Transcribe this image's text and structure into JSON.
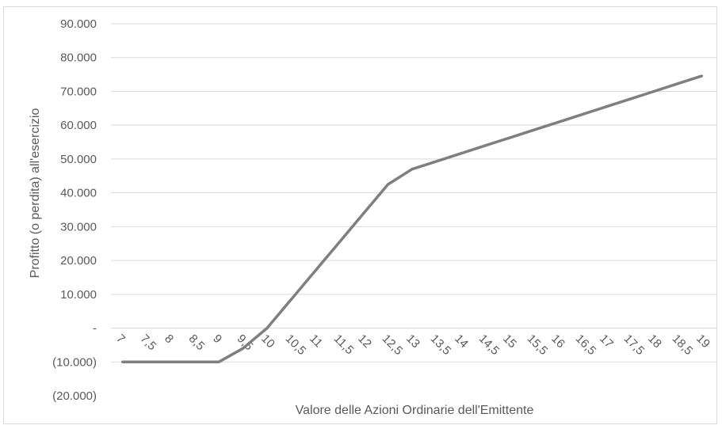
{
  "chart_data": {
    "type": "line",
    "title": "",
    "xlabel": "Valore delle Azioni Ordinarie dell'Emittente",
    "ylabel": "Profitto (o perdita) all'esercizio",
    "categories": [
      "7",
      "7,5",
      "8",
      "8,5",
      "9",
      "9,5",
      "10",
      "10,5",
      "11",
      "11,5",
      "12",
      "12,5",
      "13",
      "13,5",
      "14",
      "14,5",
      "15",
      "15,5",
      "16",
      "16,5",
      "17",
      "17,5",
      "18",
      "18,5",
      "19"
    ],
    "series": [
      {
        "values": [
          -10000,
          -10000,
          -10000,
          -10000,
          -10000,
          -6000,
          0,
          8500,
          17000,
          25500,
          34000,
          42500,
          47000,
          49300,
          51600,
          53900,
          56200,
          58500,
          60800,
          63100,
          65400,
          67700,
          70000,
          72300,
          74600
        ]
      }
    ],
    "ylim": [
      -20000,
      90000
    ],
    "yticks": [
      {
        "value": 90000,
        "label": "90.000"
      },
      {
        "value": 80000,
        "label": "80.000"
      },
      {
        "value": 70000,
        "label": "70.000"
      },
      {
        "value": 60000,
        "label": "60.000"
      },
      {
        "value": 50000,
        "label": "50.000"
      },
      {
        "value": 40000,
        "label": "40.000"
      },
      {
        "value": 30000,
        "label": "30.000"
      },
      {
        "value": 20000,
        "label": "20.000"
      },
      {
        "value": 10000,
        "label": "10.000"
      },
      {
        "value": 0,
        "label": "-"
      },
      {
        "value": -10000,
        "label": "(10.000)"
      },
      {
        "value": -20000,
        "label": "(20.000)"
      }
    ],
    "grid": true,
    "line_color": "#7f7f7f",
    "grid_color": "#d9d9d9"
  }
}
